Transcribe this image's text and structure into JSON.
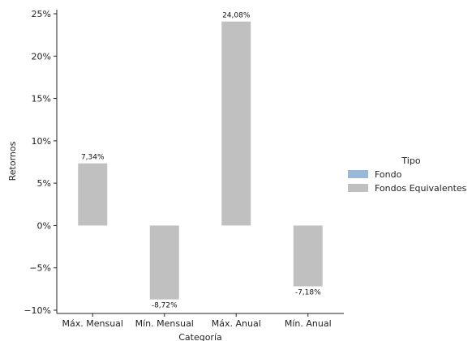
{
  "chart_data": {
    "type": "bar",
    "title": "",
    "xlabel": "Categoría",
    "ylabel": "Retornos",
    "categories": [
      "Máx. Mensual",
      "Mín. Mensual",
      "Máx. Anual",
      "Mín. Anual"
    ],
    "series": [
      {
        "name": "Fondo",
        "color": "#9ab8d8",
        "values": [
          null,
          null,
          null,
          null
        ]
      },
      {
        "name": "Fondos Equivalentes",
        "color": "#c0c0c0",
        "values": [
          7.34,
          -8.72,
          24.08,
          -7.18
        ]
      }
    ],
    "data_labels": [
      "7,34%",
      "-8,72%",
      "24,08%",
      "-7,18%"
    ],
    "ylim": [
      -10,
      25
    ],
    "yticks": [
      -10,
      -5,
      0,
      5,
      10,
      15,
      20,
      25
    ],
    "ytick_labels": [
      "−10%",
      "−5%",
      "0%",
      "5%",
      "10%",
      "15%",
      "20%",
      "25%"
    ],
    "legend": {
      "title": "Tipo",
      "position": "right"
    },
    "grid": false
  }
}
